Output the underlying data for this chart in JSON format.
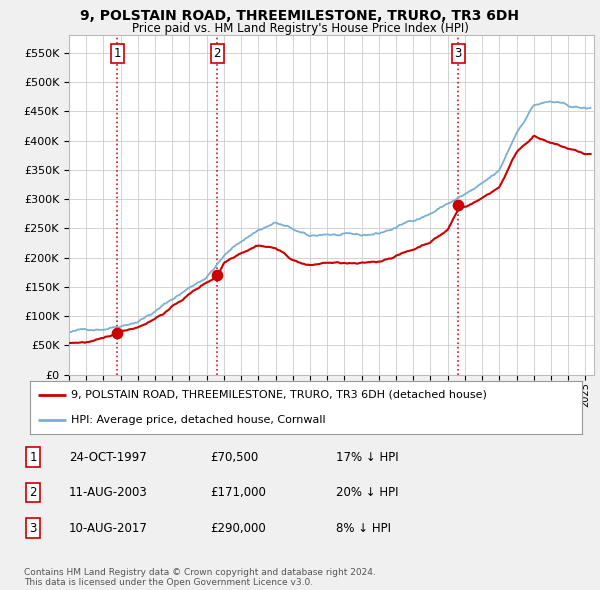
{
  "title": "9, POLSTAIN ROAD, THREEMILESTONE, TRURO, TR3 6DH",
  "subtitle": "Price paid vs. HM Land Registry's House Price Index (HPI)",
  "xlim_start": 1995.0,
  "xlim_end": 2025.5,
  "ylim": [
    0,
    580000
  ],
  "yticks": [
    0,
    50000,
    100000,
    150000,
    200000,
    250000,
    300000,
    350000,
    400000,
    450000,
    500000,
    550000
  ],
  "ytick_labels": [
    "£0",
    "£50K",
    "£100K",
    "£150K",
    "£200K",
    "£250K",
    "£300K",
    "£350K",
    "£400K",
    "£450K",
    "£500K",
    "£550K"
  ],
  "sale_dates": [
    1997.81,
    2003.61,
    2017.61
  ],
  "sale_prices": [
    70500,
    171000,
    290000
  ],
  "sale_labels": [
    "1",
    "2",
    "3"
  ],
  "red_line_color": "#cc0000",
  "blue_line_color": "#7bafd4",
  "sale_dot_color": "#cc0000",
  "vline_color": "#cc0000",
  "legend_entries": [
    "9, POLSTAIN ROAD, THREEMILESTONE, TRURO, TR3 6DH (detached house)",
    "HPI: Average price, detached house, Cornwall"
  ],
  "table_rows": [
    [
      "1",
      "24-OCT-1997",
      "£70,500",
      "17% ↓ HPI"
    ],
    [
      "2",
      "11-AUG-2003",
      "£171,000",
      "20% ↓ HPI"
    ],
    [
      "3",
      "10-AUG-2017",
      "£290,000",
      "8% ↓ HPI"
    ]
  ],
  "footnote": "Contains HM Land Registry data © Crown copyright and database right 2024.\nThis data is licensed under the Open Government Licence v3.0.",
  "background_color": "#f0f0f0",
  "plot_background": "#ffffff",
  "grid_color": "#cccccc"
}
